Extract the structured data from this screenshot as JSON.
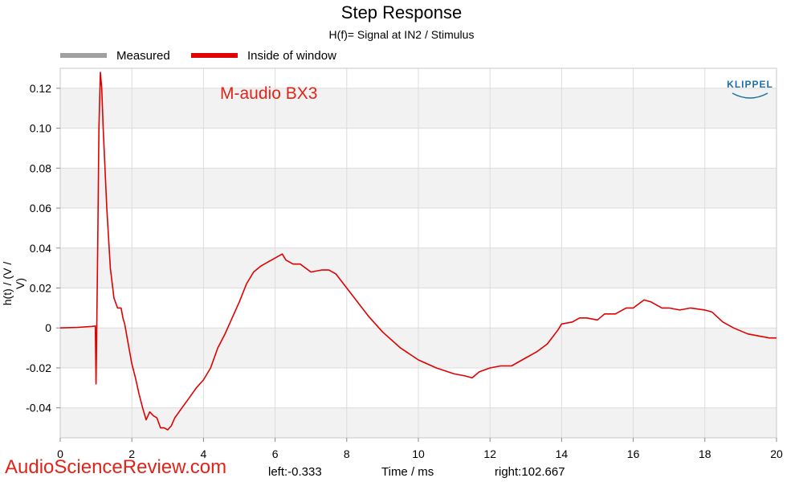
{
  "chart_data": {
    "type": "line",
    "title": "Step Response",
    "subtitle": "H(f)= Signal at IN2 / Stimulus",
    "xlabel": "Time / ms",
    "ylabel": "h(t) / (V / V)",
    "xlim": [
      0,
      20
    ],
    "ylim": [
      -0.055,
      0.13
    ],
    "x_ticks": [
      0,
      2,
      4,
      6,
      8,
      10,
      12,
      14,
      16,
      18,
      20
    ],
    "x_tick_labels": [
      "0",
      "2",
      "4",
      "6",
      "8",
      "10",
      "12",
      "14",
      "16",
      "18",
      "20"
    ],
    "y_ticks": [
      -0.04,
      -0.02,
      0,
      0.02,
      0.04,
      0.06,
      0.08,
      0.1,
      0.12
    ],
    "y_tick_labels": [
      "-0.04",
      "-0.02",
      "0",
      "0.02",
      "0.04",
      "0.06",
      "0.08",
      "0.10",
      "0.12"
    ],
    "grid": true,
    "legend_position": "top-left",
    "legend": [
      {
        "name": "Measured",
        "color": "#a0a0a0"
      },
      {
        "name": "Inside of window",
        "color": "#e00000"
      }
    ],
    "annotation": "M-audio BX3",
    "series": [
      {
        "name": "Inside of window",
        "color": "#e00000",
        "x": [
          0,
          0.5,
          0.9,
          0.98,
          1.0,
          1.02,
          1.05,
          1.08,
          1.12,
          1.16,
          1.2,
          1.3,
          1.4,
          1.5,
          1.6,
          1.7,
          1.75,
          1.8,
          1.9,
          2.0,
          2.1,
          2.2,
          2.3,
          2.4,
          2.5,
          2.6,
          2.7,
          2.8,
          2.9,
          3.0,
          3.1,
          3.2,
          3.4,
          3.6,
          3.8,
          4.0,
          4.2,
          4.4,
          4.6,
          4.8,
          5.0,
          5.2,
          5.4,
          5.6,
          5.8,
          6.0,
          6.2,
          6.3,
          6.5,
          6.7,
          7.0,
          7.3,
          7.5,
          7.7,
          8.0,
          8.3,
          8.6,
          9.0,
          9.5,
          10.0,
          10.5,
          11.0,
          11.3,
          11.5,
          11.7,
          12.0,
          12.3,
          12.6,
          13.0,
          13.3,
          13.6,
          13.9,
          14.0,
          14.3,
          14.5,
          14.7,
          15.0,
          15.2,
          15.5,
          15.8,
          16.0,
          16.3,
          16.5,
          16.8,
          17.0,
          17.3,
          17.6,
          18.0,
          18.2,
          18.5,
          18.8,
          19.2,
          19.5,
          19.8,
          20.0
        ],
        "y": [
          0.0,
          0.0003,
          0.0008,
          0.001,
          -0.028,
          0.0,
          0.045,
          0.1,
          0.128,
          0.12,
          0.1,
          0.06,
          0.03,
          0.015,
          0.01,
          0.01,
          0.005,
          0.002,
          -0.008,
          -0.018,
          -0.025,
          -0.033,
          -0.04,
          -0.046,
          -0.042,
          -0.044,
          -0.045,
          -0.05,
          -0.05,
          -0.051,
          -0.049,
          -0.045,
          -0.04,
          -0.035,
          -0.03,
          -0.026,
          -0.02,
          -0.01,
          -0.003,
          0.005,
          0.013,
          0.022,
          0.028,
          0.031,
          0.033,
          0.035,
          0.037,
          0.034,
          0.032,
          0.032,
          0.028,
          0.029,
          0.029,
          0.027,
          0.02,
          0.013,
          0.006,
          -0.002,
          -0.01,
          -0.016,
          -0.02,
          -0.023,
          -0.024,
          -0.025,
          -0.022,
          -0.02,
          -0.019,
          -0.019,
          -0.015,
          -0.012,
          -0.008,
          -0.001,
          0.002,
          0.003,
          0.005,
          0.005,
          0.004,
          0.007,
          0.007,
          0.01,
          0.01,
          0.014,
          0.013,
          0.01,
          0.01,
          0.009,
          0.01,
          0.009,
          0.008,
          0.003,
          0.0,
          -0.003,
          -0.004,
          -0.005,
          -0.005
        ]
      }
    ]
  },
  "footer": {
    "watermark": "AudioScienceReview.com",
    "left_label": "left:-0.333",
    "right_label": "right:102.667",
    "xlabel": "Time / ms"
  }
}
